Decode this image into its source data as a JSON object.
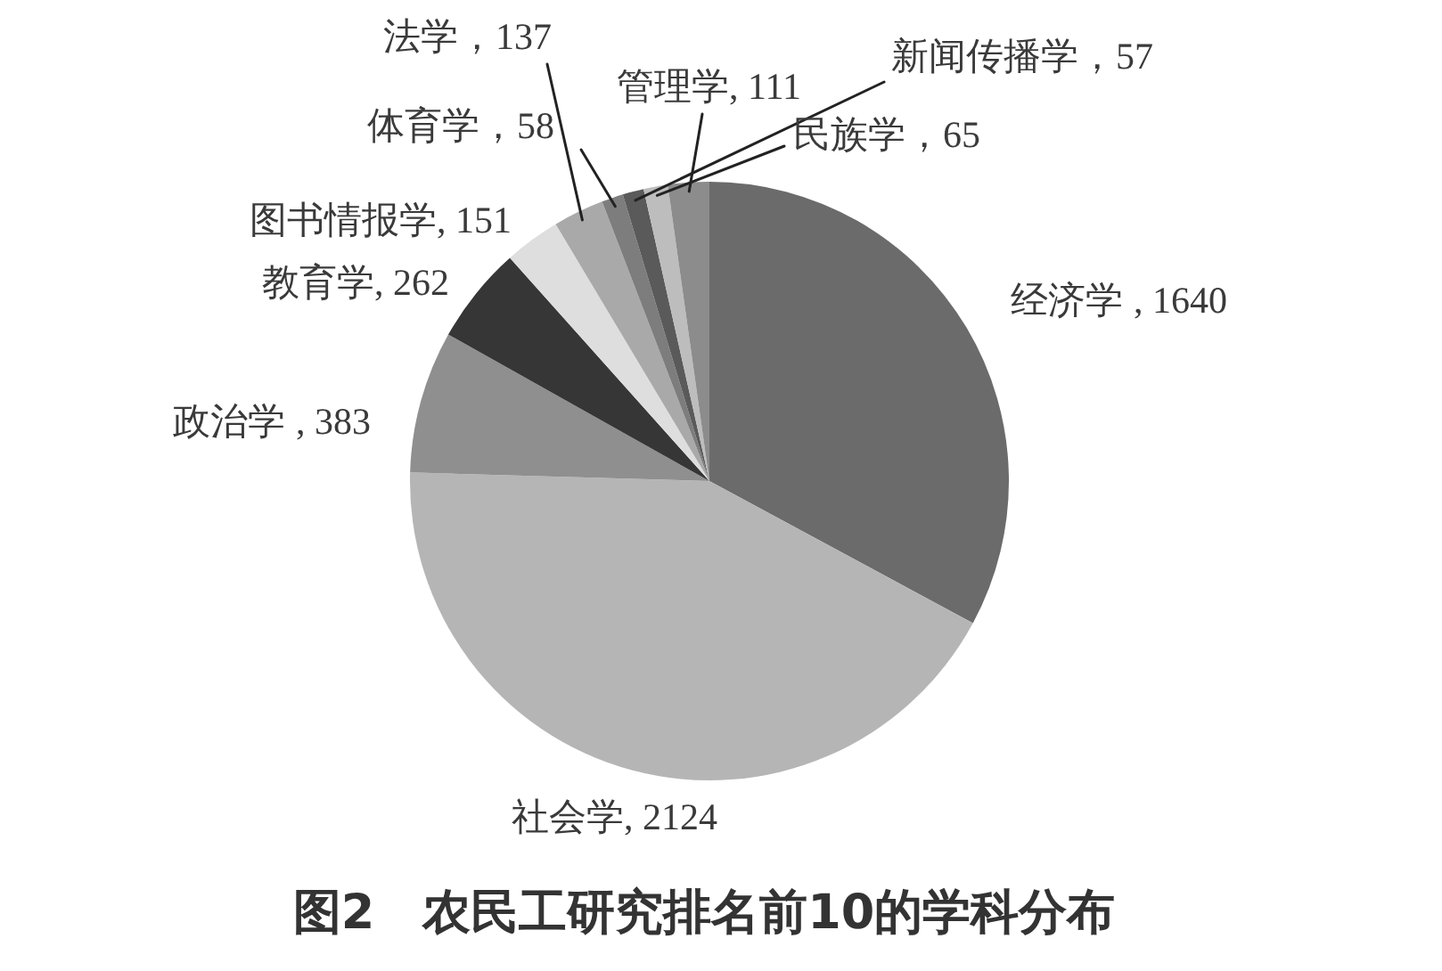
{
  "chart_data": {
    "type": "pie",
    "title": "图2　农民工研究排名前10的学科分布",
    "categories": [
      "经济学",
      "社会学",
      "政治学",
      "教育学",
      "图书情报学",
      "法学",
      "体育学",
      "新闻传播学",
      "民族学",
      "管理学"
    ],
    "values": [
      1640,
      2124,
      383,
      262,
      151,
      137,
      58,
      57,
      65,
      111
    ],
    "colors": [
      "#6b6b6b",
      "#b5b5b5",
      "#8f8f8f",
      "#363636",
      "#dedede",
      "#a9a9a9",
      "#7d7d7d",
      "#5a5a5a",
      "#bdbdbd",
      "#8c8c8c"
    ],
    "value_labels": [
      ", 1640",
      ", 2124",
      ", 383",
      ", 262",
      ", 151",
      "，137",
      "，58",
      "，57",
      "，65",
      ", 111"
    ]
  }
}
